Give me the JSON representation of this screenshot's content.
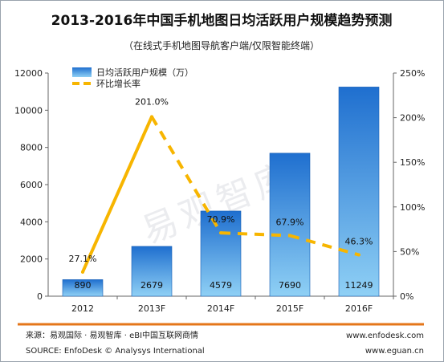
{
  "chart_data": {
    "type": "bar",
    "title": "2013-2016年中国手机地图日均活跃用户规模趋势预测",
    "subtitle": "（在线式手机地图导航客户端/仅限智能终端）",
    "categories": [
      "2012",
      "2013F",
      "2014F",
      "2015F",
      "2016F"
    ],
    "series": [
      {
        "name": "日均活跃用户规模（万）",
        "type": "bar",
        "axis": "left",
        "values": [
          890,
          2679,
          4579,
          7690,
          11249
        ],
        "color": "#2f7fd6"
      },
      {
        "name": "环比增长率",
        "type": "line",
        "axis": "right",
        "values": [
          27.1,
          201.0,
          70.9,
          67.9,
          46.3
        ],
        "labels": [
          "27.1%",
          "201.0%",
          "70.9%",
          "67.9%",
          "46.3%"
        ],
        "color": "#f7b500"
      }
    ],
    "ylim_left": [
      0,
      12000
    ],
    "yticks_left": [
      "0",
      "2000",
      "4000",
      "6000",
      "8000",
      "10000",
      "12000"
    ],
    "ylim_right": [
      0,
      250
    ],
    "yticks_right": [
      "0%",
      "50%",
      "100%",
      "150%",
      "200%",
      "250%"
    ],
    "grid": false,
    "legend_position": "top-left",
    "watermark": "易观智库"
  },
  "footer": {
    "source_cn": "来源：易观国际 · 易观智库 · eBI中国互联网商情",
    "source_en": "SOURCE: EnfoDesk © Analysys International",
    "url1": "www.enfodesk.com",
    "url2": "www.eguan.cn"
  }
}
